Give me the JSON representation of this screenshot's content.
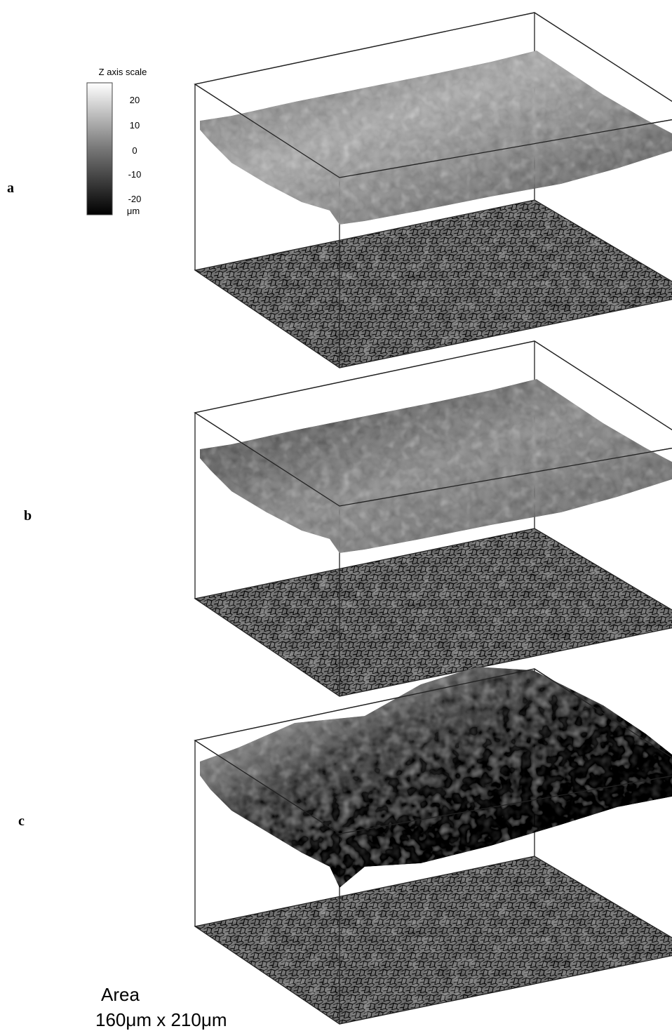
{
  "scale": {
    "title": "Z axis scale",
    "labels": [
      "20",
      "10",
      "0",
      "-10",
      "-20"
    ],
    "unit": "μm"
  },
  "panels": [
    {
      "label": "a"
    },
    {
      "label": "b"
    },
    {
      "label": "c"
    }
  ],
  "footer": {
    "line1": "Area",
    "line2": "160μm x 210μm"
  }
}
